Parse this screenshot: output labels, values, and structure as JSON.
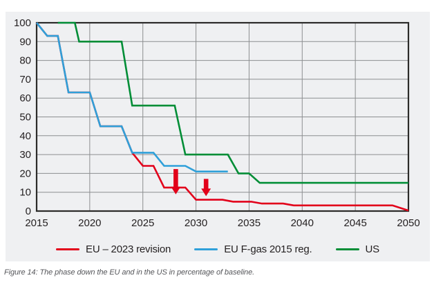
{
  "caption": {
    "text": "Figure 14: The phase down the EU and in the US in percentage of baseline."
  },
  "chart_data": {
    "type": "line",
    "title": "",
    "xlabel": "",
    "ylabel": "",
    "xlim": [
      2015,
      2050
    ],
    "ylim": [
      0,
      100
    ],
    "x_ticks": [
      2015,
      2020,
      2025,
      2030,
      2035,
      2040,
      2045,
      2050
    ],
    "y_ticks": [
      0,
      10,
      20,
      30,
      40,
      50,
      60,
      70,
      80,
      90,
      100
    ],
    "grid": true,
    "legend_position": "bottom",
    "series": [
      {
        "name": "EU – 2023 revision",
        "color": "#e2001a",
        "points": [
          [
            2015,
            100
          ],
          [
            2016,
            93
          ],
          [
            2017,
            93
          ],
          [
            2018,
            63
          ],
          [
            2020,
            63
          ],
          [
            2021,
            45
          ],
          [
            2023,
            45
          ],
          [
            2024,
            31
          ],
          [
            2025,
            24
          ],
          [
            2026,
            24
          ],
          [
            2027,
            12.5
          ],
          [
            2029,
            12.5
          ],
          [
            2030,
            6
          ],
          [
            2032.5,
            6
          ],
          [
            2033.5,
            5
          ],
          [
            2035.2,
            5
          ],
          [
            2036.2,
            4
          ],
          [
            2038.2,
            4
          ],
          [
            2039.2,
            3
          ],
          [
            2048.5,
            3
          ],
          [
            2050,
            0.3
          ]
        ]
      },
      {
        "name": "EU F-gas 2015 reg.",
        "color": "#2fa0d9",
        "points": [
          [
            2015,
            100
          ],
          [
            2016,
            93
          ],
          [
            2017,
            93
          ],
          [
            2018,
            63
          ],
          [
            2020,
            63
          ],
          [
            2021,
            45
          ],
          [
            2023,
            45
          ],
          [
            2024,
            31
          ],
          [
            2026,
            31
          ],
          [
            2027,
            24
          ],
          [
            2029,
            24
          ],
          [
            2030,
            21
          ],
          [
            2033,
            21
          ]
        ]
      },
      {
        "name": "US",
        "color": "#008d36",
        "points": [
          [
            2017,
            100
          ],
          [
            2018.6,
            100
          ],
          [
            2019,
            90
          ],
          [
            2023,
            90
          ],
          [
            2024,
            56
          ],
          [
            2028,
            56
          ],
          [
            2029,
            30
          ],
          [
            2033,
            30
          ],
          [
            2034,
            20
          ],
          [
            2035,
            20
          ],
          [
            2036,
            15
          ],
          [
            2050,
            15
          ]
        ]
      }
    ],
    "annotations": [
      {
        "type": "arrow-down",
        "x": 2028.1,
        "y_from": 22.3,
        "y_to": 8.9,
        "color": "#e2001a"
      },
      {
        "type": "arrow-down",
        "x": 2030.95,
        "y_from": 17.1,
        "y_to": 7.9,
        "color": "#e2001a"
      }
    ],
    "colors": {
      "panel_bg": "#eff0f2",
      "grid": "#8c8e90",
      "frame": "#2b2a29",
      "tick_label": "#231f20"
    }
  }
}
